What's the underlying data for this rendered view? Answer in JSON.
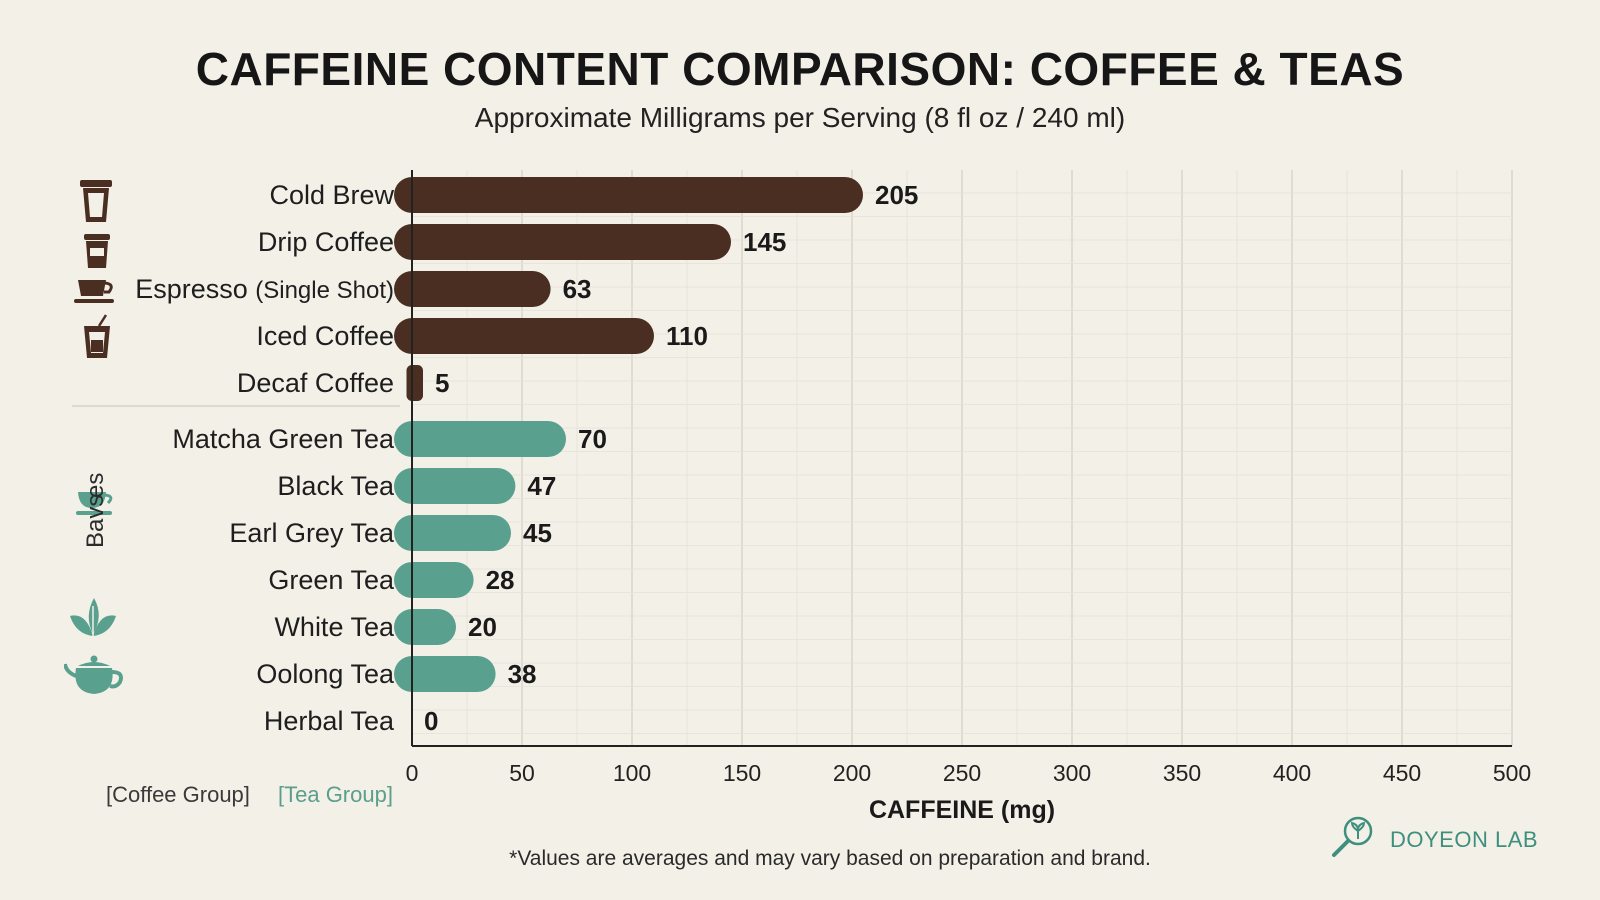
{
  "title": "CAFFEINE CONTENT COMPARISON: COFFEE & TEAS",
  "subtitle": "Approximate Milligrams per Serving (8 fl oz / 240 ml)",
  "legend": {
    "coffee": "[Coffee Group]",
    "tea": "[Tea Group]"
  },
  "side_label": {
    "text": "Bavs",
    "text2": "es"
  },
  "footnote": "*Values are averages and may vary based on preparation and brand.",
  "brand": "DOYEON LAB",
  "colors": {
    "coffee": "#4b2e22",
    "tea": "#5aa08e",
    "background": "#f3f0e8",
    "grid": "#dcd8ce"
  },
  "icons": [
    "coffee-cup-icon",
    "coffee-cup-icon",
    "espresso-cup-icon",
    "iced-coffee-icon",
    "tea-cup-icon",
    "tea-leaves-icon",
    "teapot-icon",
    "brand-logo-icon"
  ],
  "chart_data": {
    "type": "bar",
    "orientation": "horizontal",
    "categories": [
      "Cold Brew",
      "Drip Coffee",
      "Espresso",
      "Iced Coffee",
      "Decaf Coffee",
      "Matcha Green Tea",
      "Black Tea",
      "Earl Grey Tea",
      "Green Tea",
      "White Tea",
      "Oolong Tea",
      "Herbal Tea"
    ],
    "category_suffix": {
      "Espresso": "(Single Shot)"
    },
    "groups": [
      "coffee",
      "coffee",
      "coffee",
      "coffee",
      "coffee",
      "tea",
      "tea",
      "tea",
      "tea",
      "tea",
      "tea",
      "tea"
    ],
    "values": [
      205,
      145,
      63,
      110,
      5,
      70,
      47,
      45,
      28,
      20,
      38,
      0
    ],
    "xlabel": "CAFFEINE (mg)",
    "xlim": [
      0,
      500
    ],
    "xticks": [
      0,
      50,
      100,
      150,
      200,
      250,
      300,
      350,
      400,
      450,
      500
    ],
    "grid": true
  }
}
